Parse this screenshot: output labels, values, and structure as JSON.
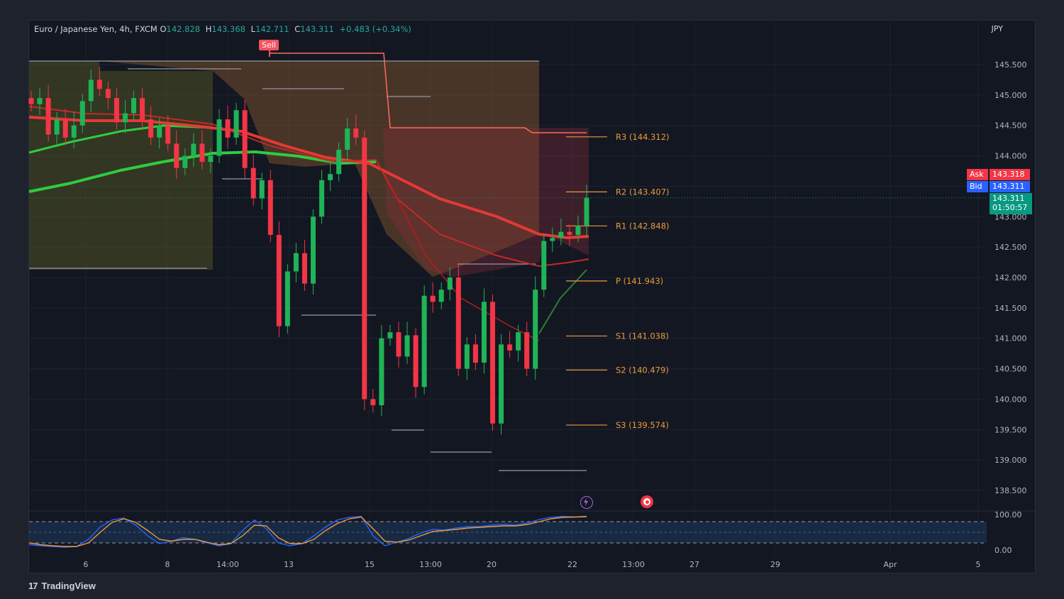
{
  "header": {
    "symbol": "Euro / Japanese Yen, 4h, FXCM",
    "open_label": "O",
    "open": "142.828",
    "high_label": "H",
    "high": "143.368",
    "low_label": "L",
    "low": "142.711",
    "close_label": "C",
    "close": "143.311",
    "change": "+0.483 (+0.34%)"
  },
  "currency": "JPY",
  "ask": {
    "label": "Ask",
    "value": "143.318"
  },
  "bid": {
    "label": "Bid",
    "value": "143.311"
  },
  "last": {
    "price": "143.311",
    "countdown": "01:50:57"
  },
  "signal_label": "Sell",
  "brand": "TradingView",
  "colors": {
    "up": "#26a69a",
    "down": "#f7525f",
    "bull_candle": "#1fb457",
    "bear_candle": "#f23645",
    "pivot": "#e89a3c",
    "ask": "#f23645",
    "bid": "#2962ff",
    "last": "#089981",
    "osc_blue": "#2962ff",
    "osc_orange": "#e89a3c"
  },
  "chart_data": {
    "type": "candlestick",
    "title": "Euro / Japanese Yen, 4h, FXCM",
    "y_ticks": [
      "145.500",
      "145.000",
      "144.500",
      "144.000",
      "143.500",
      "143.000",
      "142.500",
      "142.000",
      "141.500",
      "141.000",
      "140.500",
      "140.000",
      "139.500",
      "139.000",
      "138.500"
    ],
    "ylim": [
      138.2,
      146.2
    ],
    "x_ticks": [
      "6",
      "8",
      "14:00",
      "13",
      "15",
      "13:00",
      "20",
      "22",
      "13:00",
      "27",
      "29",
      "Apr",
      "5"
    ],
    "pivots": [
      {
        "label": "R3 (144.312)",
        "value": 144.312
      },
      {
        "label": "R2 (143.407)",
        "value": 143.407
      },
      {
        "label": "R1 (142.848)",
        "value": 142.848
      },
      {
        "label": "P (141.943)",
        "value": 141.943
      },
      {
        "label": "S1 (141.038)",
        "value": 141.038
      },
      {
        "label": "S2 (140.479)",
        "value": 140.479
      },
      {
        "label": "S3 (139.574)",
        "value": 139.574
      }
    ],
    "close_prices": [
      144.85,
      144.95,
      144.35,
      144.6,
      144.3,
      144.5,
      144.9,
      145.25,
      145.1,
      144.95,
      144.55,
      144.7,
      144.95,
      144.6,
      144.3,
      144.5,
      144.2,
      143.8,
      144.0,
      144.2,
      143.9,
      144.0,
      144.6,
      144.3,
      144.75,
      143.8,
      143.3,
      143.6,
      142.7,
      141.2,
      142.1,
      142.4,
      141.9,
      143.0,
      143.6,
      143.7,
      144.1,
      144.45,
      144.3,
      140.0,
      139.9,
      141.0,
      141.1,
      140.7,
      141.05,
      140.2,
      141.7,
      141.6,
      141.8,
      142.0,
      140.5,
      140.9,
      140.6,
      141.6,
      139.6,
      140.9,
      140.8,
      141.1,
      140.5,
      141.8,
      142.6,
      142.65,
      142.75,
      142.7,
      142.85,
      143.31
    ],
    "oscillator": {
      "ylim": [
        0,
        100
      ],
      "ticks": [
        "100.00",
        "0.00"
      ],
      "band": [
        80,
        20
      ],
      "series_blue": [
        15,
        12,
        10,
        8,
        10,
        30,
        65,
        85,
        90,
        70,
        40,
        18,
        25,
        35,
        30,
        20,
        12,
        18,
        55,
        85,
        60,
        20,
        12,
        18,
        40,
        65,
        85,
        92,
        95,
        40,
        12,
        22,
        32,
        48,
        58,
        56,
        62,
        66,
        66,
        70,
        72,
        70,
        76,
        86,
        92,
        95,
        93,
        95
      ],
      "series_orange": [
        20,
        15,
        12,
        10,
        10,
        20,
        50,
        78,
        88,
        78,
        55,
        30,
        25,
        30,
        30,
        22,
        15,
        18,
        40,
        70,
        68,
        35,
        18,
        18,
        30,
        55,
        75,
        88,
        93,
        60,
        25,
        22,
        28,
        40,
        52,
        55,
        58,
        62,
        64,
        66,
        68,
        68,
        72,
        80,
        88,
        92,
        93,
        94
      ]
    }
  }
}
